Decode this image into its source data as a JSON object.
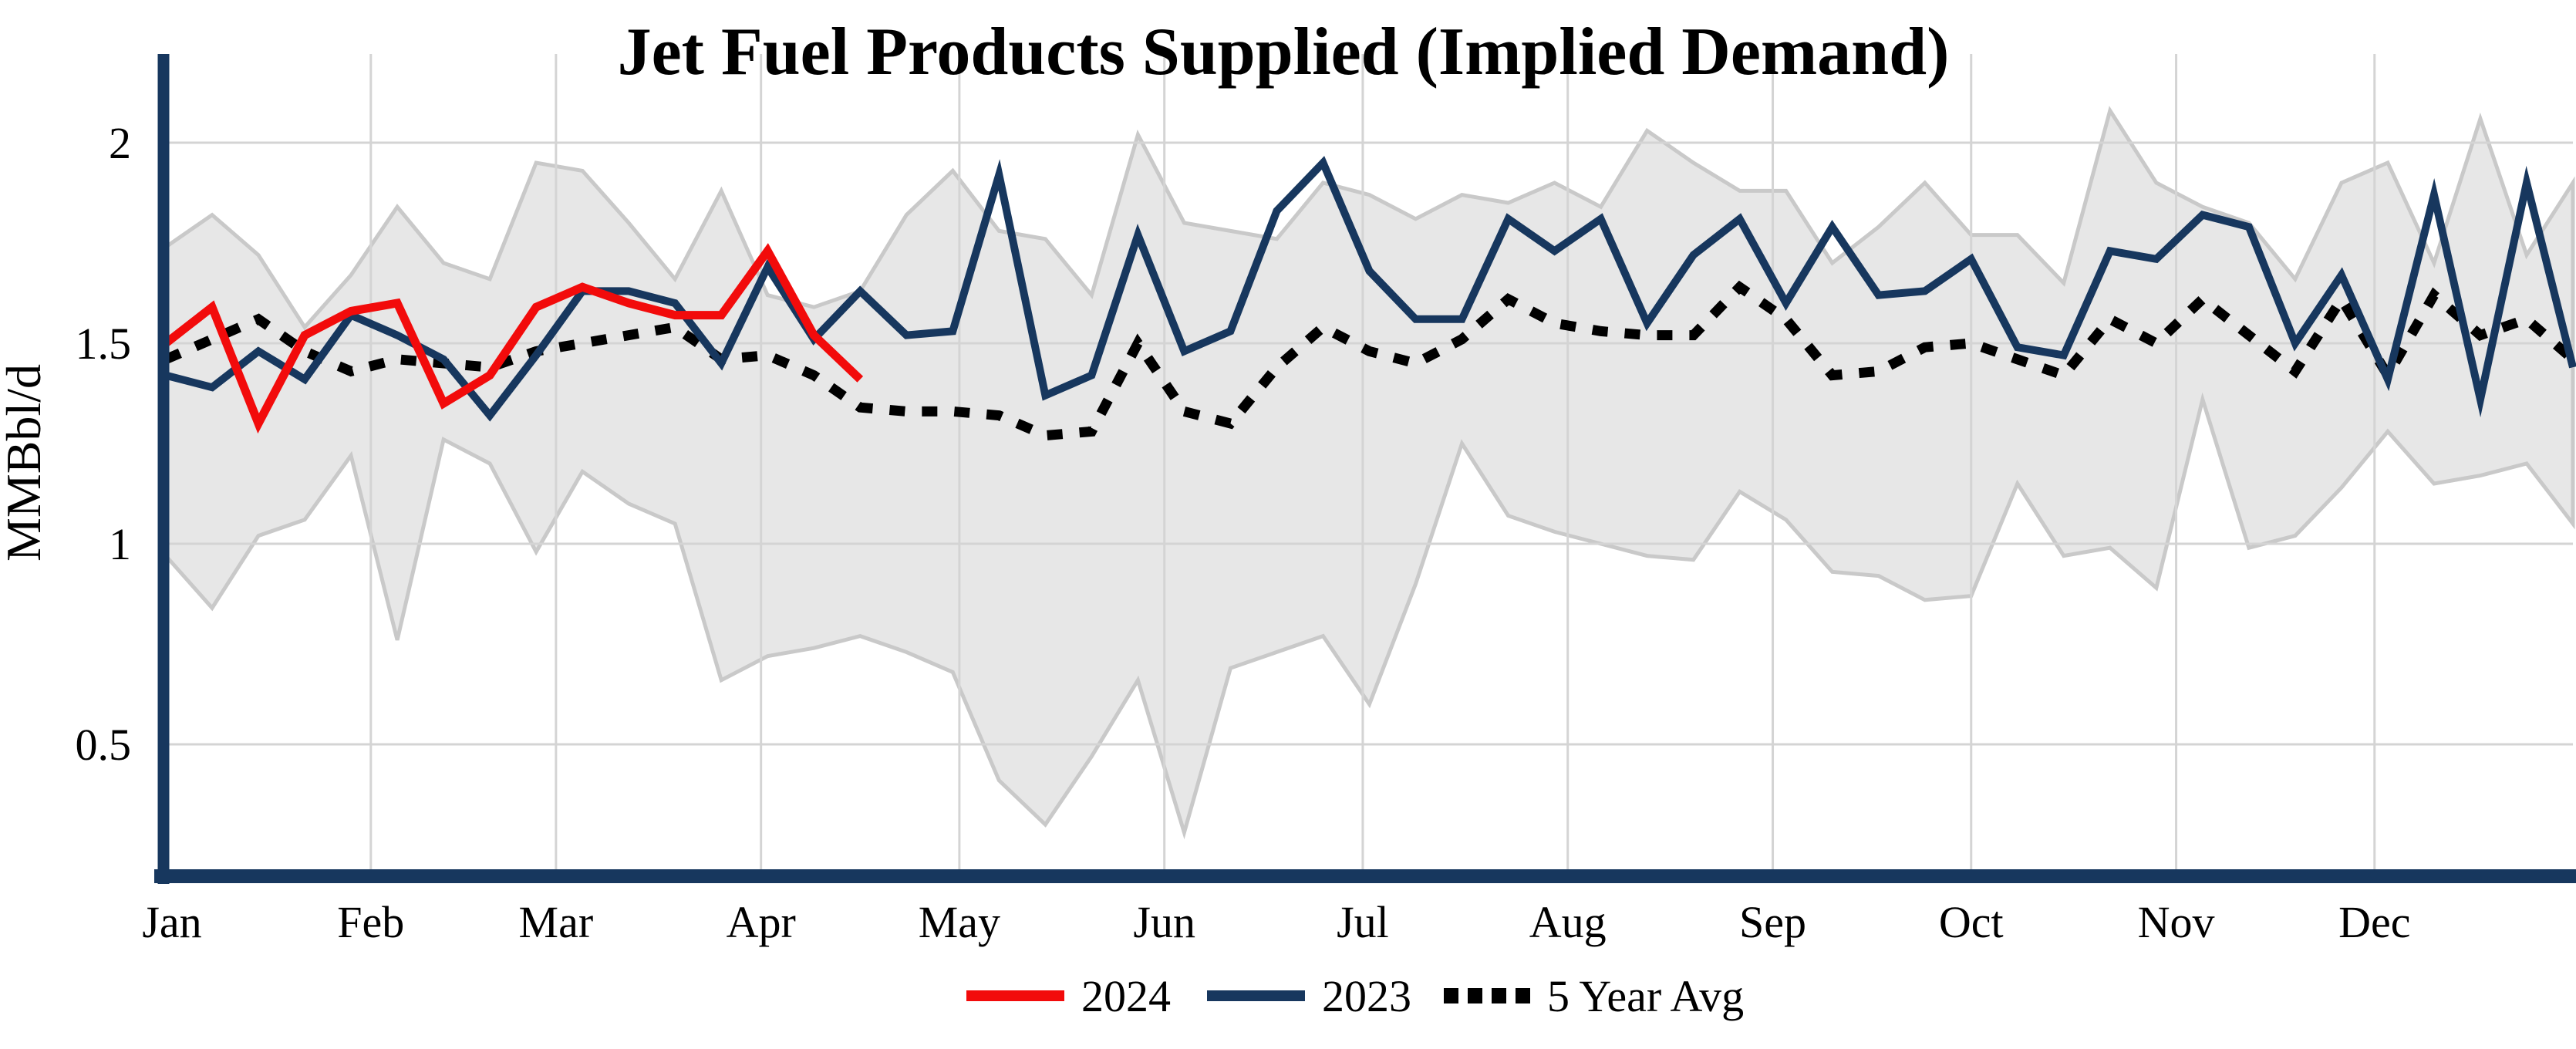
{
  "title": "Jet Fuel Products Supplied (Implied Demand)",
  "y_axis": {
    "label": "MMBbl/d",
    "ticks": [
      "0.5",
      "1",
      "1.5",
      "2"
    ],
    "tick_values": [
      0.5,
      1,
      1.5,
      2
    ]
  },
  "x_axis": {
    "months": [
      "Jan",
      "Feb",
      "Mar",
      "Apr",
      "May",
      "Jun",
      "Jul",
      "Aug",
      "Sep",
      "Oct",
      "Nov",
      "Dec"
    ]
  },
  "legend": [
    {
      "label": "2024",
      "color": "#f20b0b",
      "style": "solid"
    },
    {
      "label": "2023",
      "color": "#17375e",
      "style": "solid"
    },
    {
      "label": "5 Year Avg",
      "color": "#000000",
      "style": "dashed"
    }
  ],
  "colors": {
    "red_2024": "#f20b0b",
    "navy_2023": "#17375e",
    "avg_black": "#000000",
    "band_fill": "#e7e7e7",
    "band_edge": "#c9c9c9",
    "gridline": "#d4d4d4",
    "axis_spine": "#17375e"
  },
  "chart_data": {
    "type": "line",
    "title": "Jet Fuel Products Supplied (Implied Demand)",
    "xlabel": "",
    "ylabel": "MMBbl/d",
    "x_unit": "weekly, Jan-Dec",
    "ylim": [
      0.18,
      2.21
    ],
    "grid": true,
    "legend_position": "bottom-center",
    "series": [
      {
        "name": "2024",
        "type": "line",
        "color": "#f20b0b",
        "values": [
          1.5,
          1.59,
          1.3,
          1.52,
          1.58,
          1.6,
          1.35,
          1.42,
          1.59,
          1.64,
          1.6,
          1.57,
          1.57,
          1.73,
          1.52,
          1.41
        ]
      },
      {
        "name": "2023",
        "type": "line",
        "color": "#17375e",
        "values": [
          1.42,
          1.39,
          1.48,
          1.41,
          1.57,
          1.52,
          1.46,
          1.32,
          1.47,
          1.63,
          1.63,
          1.6,
          1.45,
          1.69,
          1.51,
          1.63,
          1.52,
          1.53,
          1.92,
          1.37,
          1.42,
          1.77,
          1.48,
          1.53,
          1.83,
          1.95,
          1.68,
          1.56,
          1.56,
          1.81,
          1.73,
          1.81,
          1.55,
          1.72,
          1.81,
          1.6,
          1.79,
          1.62,
          1.63,
          1.71,
          1.49,
          1.47,
          1.73,
          1.71,
          1.82,
          1.79,
          1.5,
          1.67,
          1.41,
          1.87,
          1.36,
          1.9,
          1.44
        ]
      },
      {
        "name": "5 Year Avg",
        "type": "line",
        "style": "dashed",
        "color": "#000000",
        "values": [
          1.46,
          1.51,
          1.56,
          1.48,
          1.43,
          1.46,
          1.45,
          1.44,
          1.48,
          1.5,
          1.52,
          1.54,
          1.46,
          1.47,
          1.42,
          1.34,
          1.33,
          1.33,
          1.32,
          1.27,
          1.28,
          1.5,
          1.33,
          1.3,
          1.44,
          1.54,
          1.48,
          1.45,
          1.51,
          1.61,
          1.55,
          1.53,
          1.52,
          1.52,
          1.64,
          1.56,
          1.42,
          1.43,
          1.49,
          1.5,
          1.46,
          1.42,
          1.56,
          1.5,
          1.61,
          1.52,
          1.43,
          1.61,
          1.42,
          1.62,
          1.52,
          1.56,
          1.46
        ]
      },
      {
        "name": "5 Year Range",
        "type": "band",
        "color": "#e7e7e7",
        "max": [
          1.74,
          1.82,
          1.72,
          1.54,
          1.67,
          1.84,
          1.7,
          1.66,
          1.95,
          1.93,
          1.8,
          1.66,
          1.88,
          1.62,
          1.59,
          1.63,
          1.82,
          1.93,
          1.78,
          1.76,
          1.62,
          2.02,
          1.8,
          1.78,
          1.76,
          1.9,
          1.87,
          1.81,
          1.87,
          1.85,
          1.9,
          1.84,
          2.03,
          1.95,
          1.88,
          1.88,
          1.7,
          1.79,
          1.9,
          1.77,
          1.77,
          1.65,
          2.08,
          1.9,
          1.84,
          1.8,
          1.66,
          1.9,
          1.95,
          1.7,
          2.06,
          1.72,
          1.9
        ],
        "min": [
          0.97,
          0.84,
          1.02,
          1.06,
          1.22,
          0.76,
          1.26,
          1.2,
          0.98,
          1.18,
          1.1,
          1.05,
          0.66,
          0.72,
          0.74,
          0.77,
          0.73,
          0.68,
          0.41,
          0.3,
          0.47,
          0.66,
          0.28,
          0.69,
          0.73,
          0.77,
          0.6,
          0.9,
          1.25,
          1.07,
          1.03,
          1.0,
          0.97,
          0.96,
          1.13,
          1.06,
          0.93,
          0.92,
          0.86,
          0.87,
          1.15,
          0.97,
          0.99,
          0.89,
          1.36,
          0.99,
          1.02,
          1.14,
          1.28,
          1.15,
          1.17,
          1.2,
          1.05
        ]
      }
    ]
  }
}
